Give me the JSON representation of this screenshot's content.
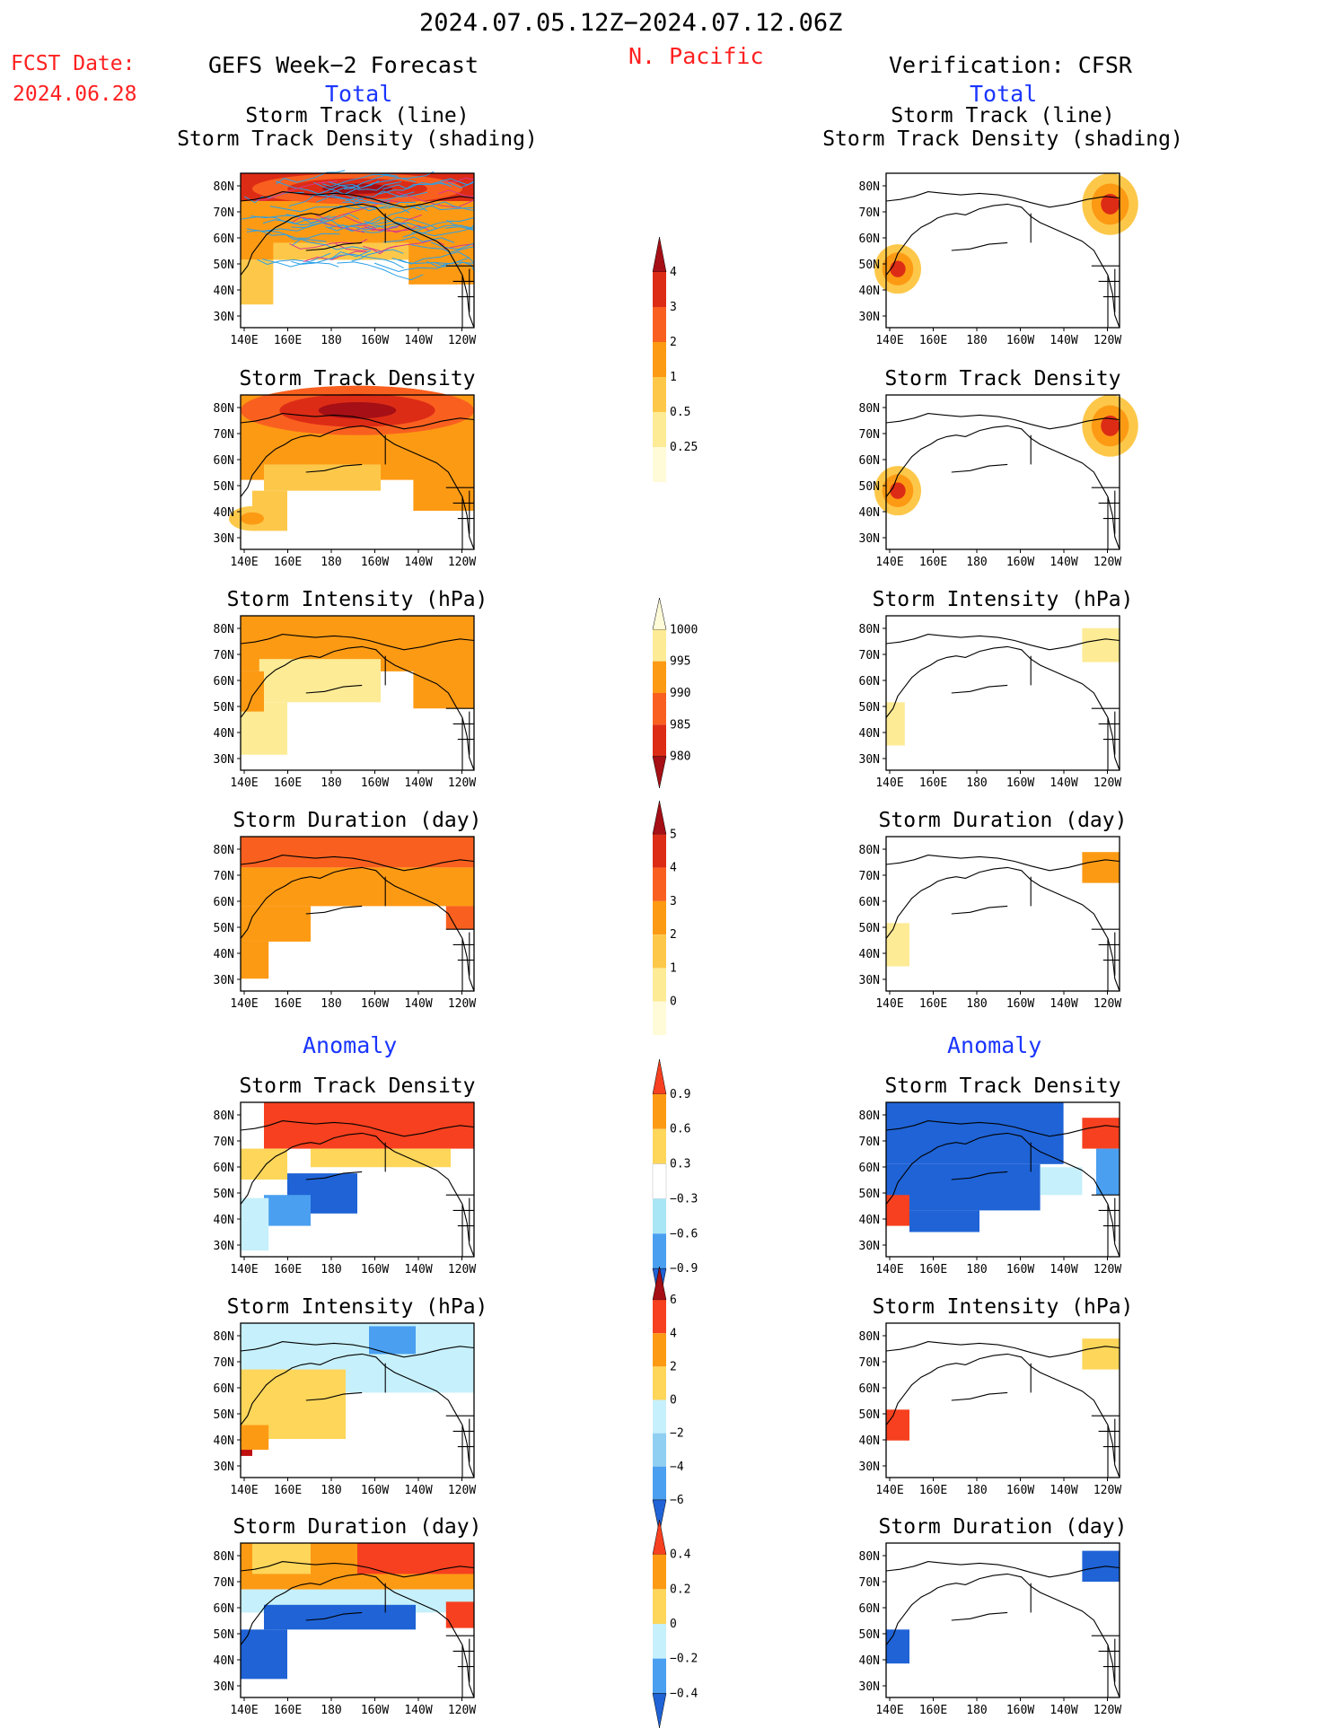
{
  "header": {
    "period": "2024.07.05.12Z−2024.07.12.06Z",
    "region": "N. Pacific",
    "fcst_label": "FCST Date:",
    "fcst_date": "2024.06.28",
    "left_title": "GEFS Week−2 Forecast",
    "right_title": "Verification: CFSR",
    "total_label": "Total",
    "anomaly_label": "Anomaly"
  },
  "colors": {
    "title": "#000000",
    "red_text": "#ff2020",
    "blue_text": "#1a35ff",
    "coast": "#000000",
    "track_line": "#2aa0e8"
  },
  "panel_titles": {
    "track_line": "Storm Track (line)",
    "track_shading": "Storm Track Density (shading)",
    "density": "Storm Track Density",
    "intensity": "Storm Intensity (hPa)",
    "duration": "Storm Duration (day)"
  },
  "axes": {
    "x_ticks": [
      "140E",
      "160E",
      "180",
      "160W",
      "140W",
      "120W"
    ],
    "y_ticks": [
      "80N",
      "70N",
      "60N",
      "50N",
      "40N",
      "30N"
    ]
  },
  "chart_data": [
    {
      "type": "heatmap",
      "title": "Storm Track (line) / Storm Track Density (shading)",
      "model": "GEFS Week-2 Forecast",
      "field": "total",
      "description_values": {
        "max_density_region": "north of 70N",
        "tracks": "many track lines across 40N-80N"
      },
      "scale": "density"
    },
    {
      "type": "heatmap",
      "title": "Storm Track (line) / Storm Track Density (shading)",
      "model": "Verification: CFSR",
      "field": "total",
      "scale": "density"
    },
    {
      "type": "heatmap",
      "title": "Storm Track Density",
      "model": "GEFS",
      "field": "total",
      "scale": "density"
    },
    {
      "type": "heatmap",
      "title": "Storm Track Density",
      "model": "CFSR",
      "field": "total",
      "scale": "density"
    },
    {
      "type": "heatmap",
      "title": "Storm Intensity (hPa)",
      "model": "GEFS",
      "field": "total",
      "scale": "intensity"
    },
    {
      "type": "heatmap",
      "title": "Storm Intensity (hPa)",
      "model": "CFSR",
      "field": "total",
      "scale": "intensity"
    },
    {
      "type": "heatmap",
      "title": "Storm Duration (day)",
      "model": "GEFS",
      "field": "total",
      "scale": "duration"
    },
    {
      "type": "heatmap",
      "title": "Storm Duration (day)",
      "model": "CFSR",
      "field": "total",
      "scale": "duration"
    },
    {
      "type": "heatmap",
      "title": "Storm Track Density",
      "model": "GEFS",
      "field": "anomaly",
      "scale": "density_anom"
    },
    {
      "type": "heatmap",
      "title": "Storm Track Density",
      "model": "CFSR",
      "field": "anomaly",
      "scale": "density_anom"
    },
    {
      "type": "heatmap",
      "title": "Storm Intensity (hPa)",
      "model": "GEFS",
      "field": "anomaly",
      "scale": "intensity_anom"
    },
    {
      "type": "heatmap",
      "title": "Storm Intensity (hPa)",
      "model": "CFSR",
      "field": "anomaly",
      "scale": "intensity_anom"
    },
    {
      "type": "heatmap",
      "title": "Storm Duration (day)",
      "model": "GEFS",
      "field": "anomaly",
      "scale": "duration_anom"
    },
    {
      "type": "heatmap",
      "title": "Storm Duration (day)",
      "model": "CFSR",
      "field": "anomaly",
      "scale": "duration_anom"
    }
  ],
  "colorbars": [
    {
      "name": "density",
      "labels": [
        "4",
        "3",
        "2",
        "1",
        "0.5",
        "0.25"
      ],
      "colors": [
        "#a50f15",
        "#dd2c16",
        "#f9601f",
        "#fd9a14",
        "#fdc84a",
        "#fdeb96",
        "#fffbd8"
      ]
    },
    {
      "name": "intensity",
      "labels": [
        "1000",
        "995",
        "990",
        "985",
        "980"
      ],
      "colors": [
        "#fffbd8",
        "#fdeb96",
        "#fd9a14",
        "#f9601f",
        "#dd2c16",
        "#a50f15"
      ]
    },
    {
      "name": "duration",
      "labels": [
        "5",
        "4",
        "3",
        "2",
        "1",
        "0"
      ],
      "colors": [
        "#a50f15",
        "#dd2c16",
        "#f9601f",
        "#fd9a14",
        "#fdc84a",
        "#fdeb96",
        "#fffbd8"
      ]
    },
    {
      "name": "density_anom",
      "labels": [
        "0.9",
        "0.6",
        "0.3",
        "−0.3",
        "−0.6",
        "−0.9"
      ],
      "colors": [
        "#f6401f",
        "#fd9a14",
        "#fdd65a",
        "#ffffff",
        "#a8e6f5",
        "#4a9ff0",
        "#1f63d6"
      ]
    },
    {
      "name": "intensity_anom",
      "labels": [
        "6",
        "4",
        "2",
        "0",
        "−2",
        "−4",
        "−6"
      ],
      "colors": [
        "#a50f15",
        "#f6401f",
        "#fd9a14",
        "#fdd65a",
        "#c6f0fb",
        "#8fcff2",
        "#4a9ff0",
        "#1f63d6"
      ]
    },
    {
      "name": "duration_anom",
      "labels": [
        "0.4",
        "0.2",
        "0",
        "−0.2",
        "−0.4"
      ],
      "colors": [
        "#f6401f",
        "#fd9a14",
        "#fdd65a",
        "#c6f0fb",
        "#4a9ff0",
        "#1f63d6"
      ]
    }
  ]
}
